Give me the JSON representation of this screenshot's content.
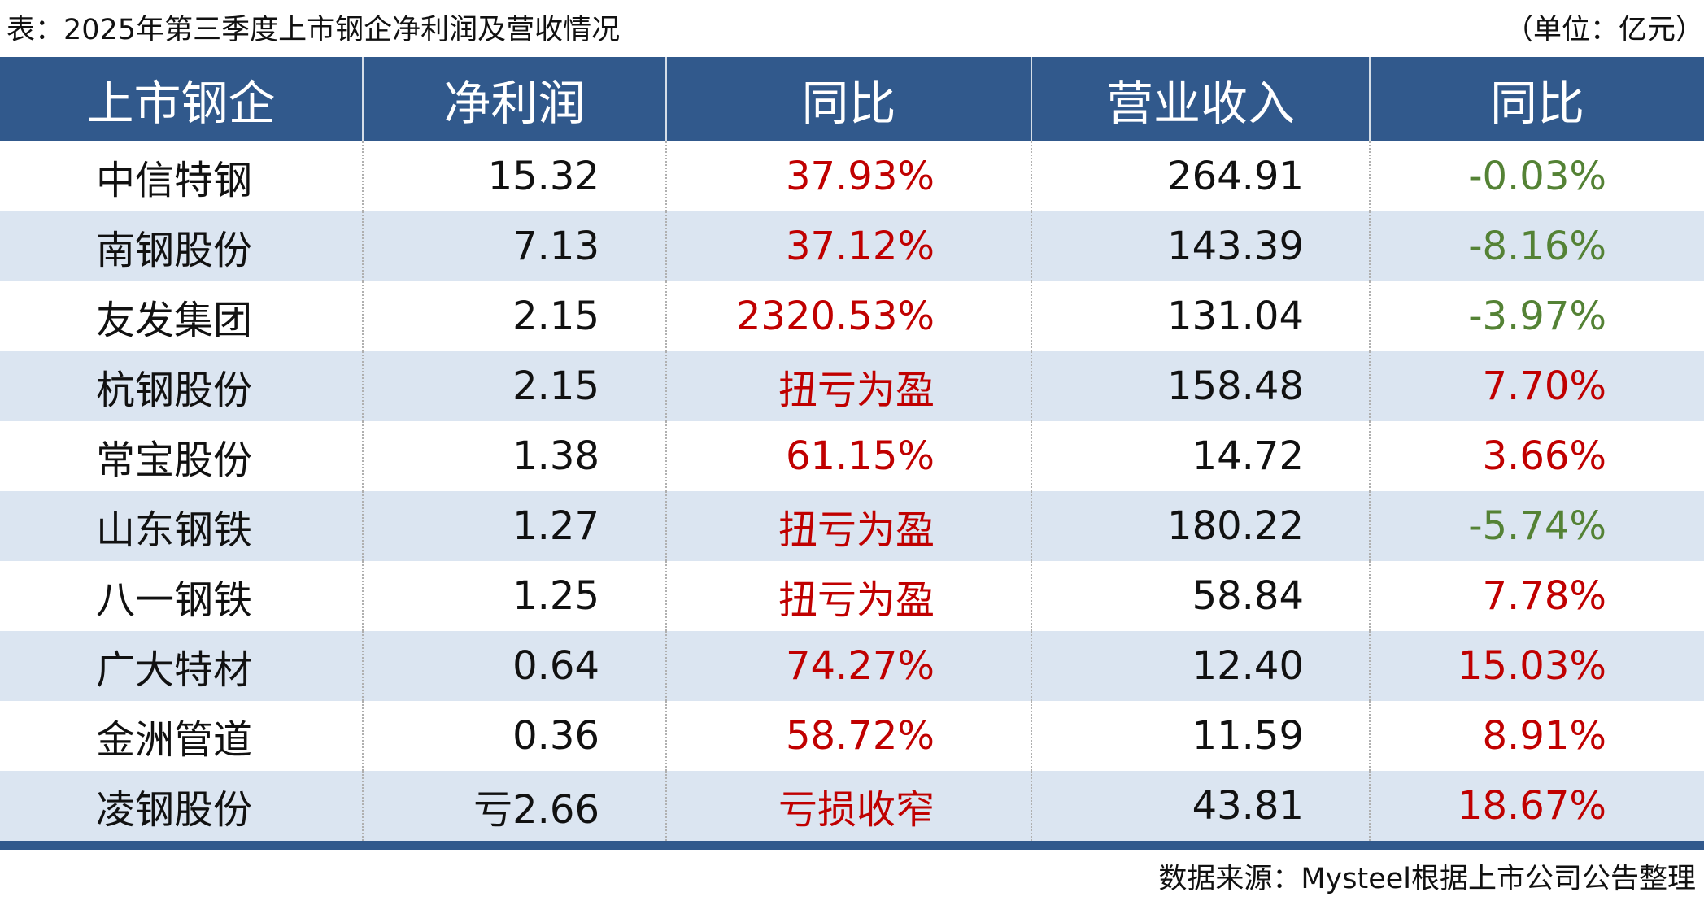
{
  "title": "表：2025年第三季度上市钢企净利润及营收情况",
  "unit": "（单位：亿元）",
  "colors": {
    "header": "#31598c",
    "stripe": "#dbe5f1",
    "positive": "#c00000",
    "negative": "#548235"
  },
  "table": {
    "header": [
      "上市钢企",
      "净利润",
      "同比",
      "营业收入",
      "同比"
    ],
    "rows": [
      [
        "中信特钢",
        "15.32",
        "37.93%",
        "264.91",
        "-0.03%"
      ],
      [
        "南钢股份",
        "7.13",
        "37.12%",
        "143.39",
        "-8.16%"
      ],
      [
        "友发集团",
        "2.15",
        "2320.53%",
        "131.04",
        "-3.97%"
      ],
      [
        "杭钢股份",
        "2.15",
        "扭亏为盈",
        "158.48",
        "7.70%"
      ],
      [
        "常宝股份",
        "1.38",
        "61.15%",
        "14.72",
        "3.66%"
      ],
      [
        "山东钢铁",
        "1.27",
        "扭亏为盈",
        "180.22",
        "-5.74%"
      ],
      [
        "八一钢铁",
        "1.25",
        "扭亏为盈",
        "58.84",
        "7.78%"
      ],
      [
        "广大特材",
        "0.64",
        "74.27%",
        "12.40",
        "15.03%"
      ],
      [
        "金洲管道",
        "0.36",
        "58.72%",
        "11.59",
        "8.91%"
      ],
      [
        "凌钢股份",
        "亏2.66",
        "亏损收窄",
        "43.81",
        "18.67%"
      ]
    ]
  },
  "source": "数据来源：Mysteel根据上市公司公告整理"
}
